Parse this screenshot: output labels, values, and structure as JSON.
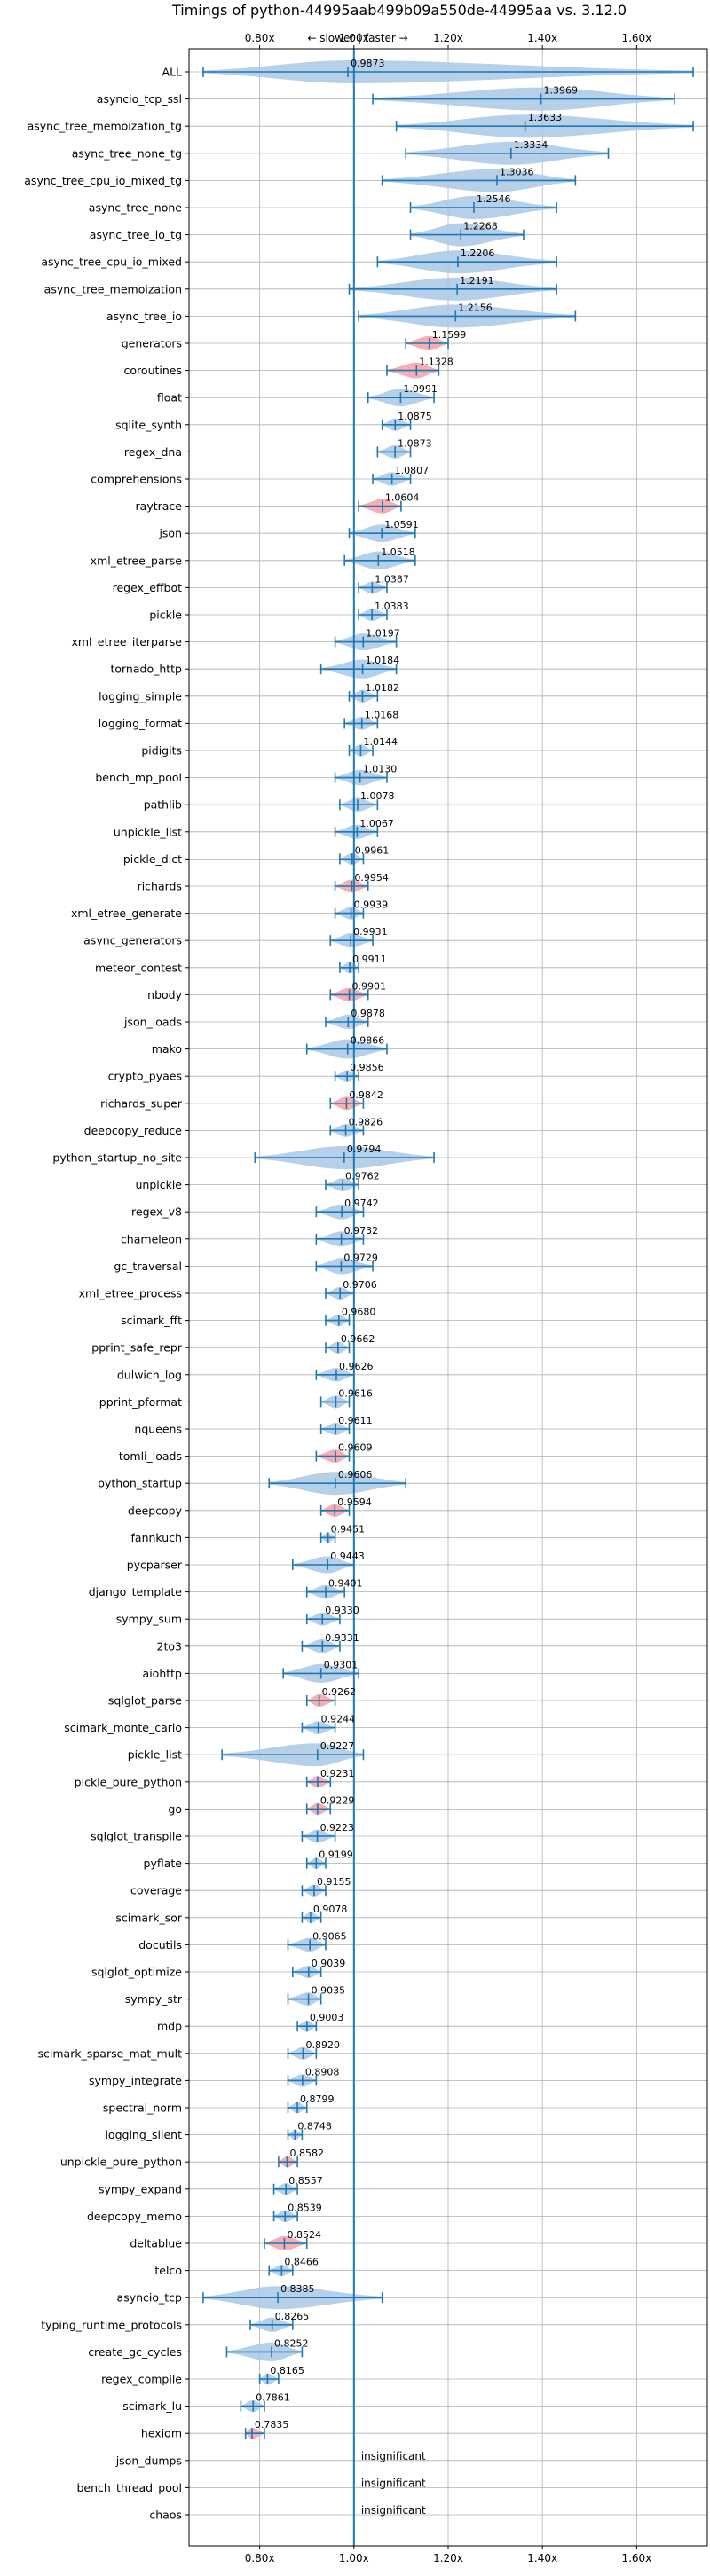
{
  "chart_data": {
    "type": "violin",
    "title": "Timings of python-44995aab499b09a550de-44995aa vs. 3.12.0",
    "top_axis_annotation": "← slower | faster →",
    "xlim": [
      0.65,
      1.75
    ],
    "xticks": [
      0.8,
      1.0,
      1.2,
      1.4,
      1.6
    ],
    "xtick_labels": [
      "0.80x",
      "1.00x",
      "1.20x",
      "1.40x",
      "1.60x"
    ],
    "reference_line": 1.0,
    "grid": true,
    "insignificant_label": "insignificant",
    "colors": {
      "normal": "#a9c8e6",
      "highlight": "#f3a0a6",
      "line": "#1f77b4"
    },
    "benchmarks": [
      {
        "name": "ALL",
        "value": 0.9873,
        "label": "0.9873",
        "lo": 0.68,
        "hi": 1.72,
        "hl": false
      },
      {
        "name": "asyncio_tcp_ssl",
        "value": 1.3969,
        "label": "1.3969",
        "lo": 1.04,
        "hi": 1.68,
        "hl": false
      },
      {
        "name": "async_tree_memoization_tg",
        "value": 1.3633,
        "label": "1.3633",
        "lo": 1.09,
        "hi": 1.72,
        "hl": false
      },
      {
        "name": "async_tree_none_tg",
        "value": 1.3334,
        "label": "1.3334",
        "lo": 1.11,
        "hi": 1.54,
        "hl": false
      },
      {
        "name": "async_tree_cpu_io_mixed_tg",
        "value": 1.3036,
        "label": "1.3036",
        "lo": 1.06,
        "hi": 1.47,
        "hl": false
      },
      {
        "name": "async_tree_none",
        "value": 1.2546,
        "label": "1.2546",
        "lo": 1.12,
        "hi": 1.43,
        "hl": false
      },
      {
        "name": "async_tree_io_tg",
        "value": 1.2268,
        "label": "1.2268",
        "lo": 1.12,
        "hi": 1.36,
        "hl": false
      },
      {
        "name": "async_tree_cpu_io_mixed",
        "value": 1.2206,
        "label": "1.2206",
        "lo": 1.05,
        "hi": 1.43,
        "hl": false
      },
      {
        "name": "async_tree_memoization",
        "value": 1.2191,
        "label": "1.2191",
        "lo": 0.99,
        "hi": 1.43,
        "hl": false
      },
      {
        "name": "async_tree_io",
        "value": 1.2156,
        "label": "1.2156",
        "lo": 1.01,
        "hi": 1.47,
        "hl": false
      },
      {
        "name": "generators",
        "value": 1.1599,
        "label": "1.1599",
        "lo": 1.11,
        "hi": 1.2,
        "hl": true
      },
      {
        "name": "coroutines",
        "value": 1.1328,
        "label": "1.1328",
        "lo": 1.07,
        "hi": 1.18,
        "hl": true
      },
      {
        "name": "float",
        "value": 1.0991,
        "label": "1.0991",
        "lo": 1.03,
        "hi": 1.17,
        "hl": false
      },
      {
        "name": "sqlite_synth",
        "value": 1.0875,
        "label": "1.0875",
        "lo": 1.06,
        "hi": 1.12,
        "hl": false
      },
      {
        "name": "regex_dna",
        "value": 1.0873,
        "label": "1.0873",
        "lo": 1.05,
        "hi": 1.12,
        "hl": false
      },
      {
        "name": "comprehensions",
        "value": 1.0807,
        "label": "1.0807",
        "lo": 1.04,
        "hi": 1.12,
        "hl": false
      },
      {
        "name": "raytrace",
        "value": 1.0604,
        "label": "1.0604",
        "lo": 1.01,
        "hi": 1.1,
        "hl": true
      },
      {
        "name": "json",
        "value": 1.0591,
        "label": "1.0591",
        "lo": 0.99,
        "hi": 1.13,
        "hl": false
      },
      {
        "name": "xml_etree_parse",
        "value": 1.0518,
        "label": "1.0518",
        "lo": 0.98,
        "hi": 1.13,
        "hl": false
      },
      {
        "name": "regex_effbot",
        "value": 1.0387,
        "label": "1.0387",
        "lo": 1.01,
        "hi": 1.07,
        "hl": false
      },
      {
        "name": "pickle",
        "value": 1.0383,
        "label": "1.0383",
        "lo": 1.01,
        "hi": 1.07,
        "hl": false
      },
      {
        "name": "xml_etree_iterparse",
        "value": 1.0197,
        "label": "1.0197",
        "lo": 0.96,
        "hi": 1.09,
        "hl": false
      },
      {
        "name": "tornado_http",
        "value": 1.0184,
        "label": "1.0184",
        "lo": 0.93,
        "hi": 1.09,
        "hl": false
      },
      {
        "name": "logging_simple",
        "value": 1.0182,
        "label": "1.0182",
        "lo": 0.99,
        "hi": 1.05,
        "hl": false
      },
      {
        "name": "logging_format",
        "value": 1.0168,
        "label": "1.0168",
        "lo": 0.98,
        "hi": 1.05,
        "hl": false
      },
      {
        "name": "pidigits",
        "value": 1.0144,
        "label": "1.0144",
        "lo": 0.99,
        "hi": 1.04,
        "hl": false
      },
      {
        "name": "bench_mp_pool",
        "value": 1.013,
        "label": "1.0130",
        "lo": 0.96,
        "hi": 1.07,
        "hl": false
      },
      {
        "name": "pathlib",
        "value": 1.0078,
        "label": "1.0078",
        "lo": 0.97,
        "hi": 1.05,
        "hl": false
      },
      {
        "name": "unpickle_list",
        "value": 1.0067,
        "label": "1.0067",
        "lo": 0.96,
        "hi": 1.05,
        "hl": false
      },
      {
        "name": "pickle_dict",
        "value": 0.9961,
        "label": "0.9961",
        "lo": 0.97,
        "hi": 1.02,
        "hl": false
      },
      {
        "name": "richards",
        "value": 0.9954,
        "label": "0.9954",
        "lo": 0.96,
        "hi": 1.03,
        "hl": true
      },
      {
        "name": "xml_etree_generate",
        "value": 0.9939,
        "label": "0.9939",
        "lo": 0.96,
        "hi": 1.02,
        "hl": false
      },
      {
        "name": "async_generators",
        "value": 0.9931,
        "label": "0.9931",
        "lo": 0.95,
        "hi": 1.04,
        "hl": false
      },
      {
        "name": "meteor_contest",
        "value": 0.9911,
        "label": "0.9911",
        "lo": 0.97,
        "hi": 1.01,
        "hl": false
      },
      {
        "name": "nbody",
        "value": 0.9901,
        "label": "0.9901",
        "lo": 0.95,
        "hi": 1.03,
        "hl": true
      },
      {
        "name": "json_loads",
        "value": 0.9878,
        "label": "0.9878",
        "lo": 0.94,
        "hi": 1.03,
        "hl": false
      },
      {
        "name": "mako",
        "value": 0.9866,
        "label": "0.9866",
        "lo": 0.9,
        "hi": 1.07,
        "hl": false
      },
      {
        "name": "crypto_pyaes",
        "value": 0.9856,
        "label": "0.9856",
        "lo": 0.96,
        "hi": 1.01,
        "hl": false
      },
      {
        "name": "richards_super",
        "value": 0.9842,
        "label": "0.9842",
        "lo": 0.95,
        "hi": 1.02,
        "hl": true
      },
      {
        "name": "deepcopy_reduce",
        "value": 0.9826,
        "label": "0.9826",
        "lo": 0.95,
        "hi": 1.02,
        "hl": false
      },
      {
        "name": "python_startup_no_site",
        "value": 0.9794,
        "label": "0.9794",
        "lo": 0.79,
        "hi": 1.17,
        "hl": false
      },
      {
        "name": "unpickle",
        "value": 0.9762,
        "label": "0.9762",
        "lo": 0.94,
        "hi": 1.01,
        "hl": false
      },
      {
        "name": "regex_v8",
        "value": 0.9742,
        "label": "0.9742",
        "lo": 0.92,
        "hi": 1.02,
        "hl": false
      },
      {
        "name": "chameleon",
        "value": 0.9732,
        "label": "0.9732",
        "lo": 0.92,
        "hi": 1.02,
        "hl": false
      },
      {
        "name": "gc_traversal",
        "value": 0.9729,
        "label": "0.9729",
        "lo": 0.92,
        "hi": 1.04,
        "hl": false
      },
      {
        "name": "xml_etree_process",
        "value": 0.9706,
        "label": "0.9706",
        "lo": 0.94,
        "hi": 1.0,
        "hl": false
      },
      {
        "name": "scimark_fft",
        "value": 0.968,
        "label": "0.9680",
        "lo": 0.94,
        "hi": 0.99,
        "hl": false
      },
      {
        "name": "pprint_safe_repr",
        "value": 0.9662,
        "label": "0.9662",
        "lo": 0.94,
        "hi": 0.99,
        "hl": false
      },
      {
        "name": "dulwich_log",
        "value": 0.9626,
        "label": "0.9626",
        "lo": 0.92,
        "hi": 1.0,
        "hl": false
      },
      {
        "name": "pprint_pformat",
        "value": 0.9616,
        "label": "0.9616",
        "lo": 0.93,
        "hi": 0.99,
        "hl": false
      },
      {
        "name": "nqueens",
        "value": 0.9611,
        "label": "0.9611",
        "lo": 0.93,
        "hi": 0.99,
        "hl": false
      },
      {
        "name": "tomli_loads",
        "value": 0.9609,
        "label": "0.9609",
        "lo": 0.92,
        "hi": 0.99,
        "hl": true
      },
      {
        "name": "python_startup",
        "value": 0.9606,
        "label": "0.9606",
        "lo": 0.82,
        "hi": 1.11,
        "hl": false
      },
      {
        "name": "deepcopy",
        "value": 0.9594,
        "label": "0.9594",
        "lo": 0.93,
        "hi": 0.99,
        "hl": true
      },
      {
        "name": "fannkuch",
        "value": 0.9451,
        "label": "0.9451",
        "lo": 0.93,
        "hi": 0.96,
        "hl": false
      },
      {
        "name": "pycparser",
        "value": 0.9443,
        "label": "0.9443",
        "lo": 0.87,
        "hi": 1.0,
        "hl": false
      },
      {
        "name": "django_template",
        "value": 0.9401,
        "label": "0.9401",
        "lo": 0.9,
        "hi": 0.98,
        "hl": false
      },
      {
        "name": "sympy_sum",
        "value": 0.933,
        "label": "0.9330",
        "lo": 0.9,
        "hi": 0.97,
        "hl": false
      },
      {
        "name": "2to3",
        "value": 0.9331,
        "label": "0.9331",
        "lo": 0.89,
        "hi": 0.97,
        "hl": false
      },
      {
        "name": "aiohttp",
        "value": 0.9301,
        "label": "0.9301",
        "lo": 0.85,
        "hi": 1.01,
        "hl": false
      },
      {
        "name": "sqlglot_parse",
        "value": 0.9262,
        "label": "0.9262",
        "lo": 0.9,
        "hi": 0.96,
        "hl": true
      },
      {
        "name": "scimark_monte_carlo",
        "value": 0.9244,
        "label": "0.9244",
        "lo": 0.89,
        "hi": 0.96,
        "hl": false
      },
      {
        "name": "pickle_list",
        "value": 0.9227,
        "label": "0.9227",
        "lo": 0.72,
        "hi": 1.02,
        "hl": false
      },
      {
        "name": "pickle_pure_python",
        "value": 0.9231,
        "label": "0.9231",
        "lo": 0.9,
        "hi": 0.95,
        "hl": true
      },
      {
        "name": "go",
        "value": 0.9229,
        "label": "0.9229",
        "lo": 0.9,
        "hi": 0.95,
        "hl": true
      },
      {
        "name": "sqlglot_transpile",
        "value": 0.9223,
        "label": "0.9223",
        "lo": 0.89,
        "hi": 0.96,
        "hl": false
      },
      {
        "name": "pyflate",
        "value": 0.9199,
        "label": "0.9199",
        "lo": 0.9,
        "hi": 0.94,
        "hl": false
      },
      {
        "name": "coverage",
        "value": 0.9155,
        "label": "0.9155",
        "lo": 0.89,
        "hi": 0.94,
        "hl": false
      },
      {
        "name": "scimark_sor",
        "value": 0.9078,
        "label": "0.9078",
        "lo": 0.89,
        "hi": 0.93,
        "hl": false
      },
      {
        "name": "docutils",
        "value": 0.9065,
        "label": "0.9065",
        "lo": 0.86,
        "hi": 0.94,
        "hl": false
      },
      {
        "name": "sqlglot_optimize",
        "value": 0.9039,
        "label": "0.9039",
        "lo": 0.87,
        "hi": 0.93,
        "hl": false
      },
      {
        "name": "sympy_str",
        "value": 0.9035,
        "label": "0.9035",
        "lo": 0.86,
        "hi": 0.93,
        "hl": false
      },
      {
        "name": "mdp",
        "value": 0.9003,
        "label": "0.9003",
        "lo": 0.88,
        "hi": 0.92,
        "hl": false
      },
      {
        "name": "scimark_sparse_mat_mult",
        "value": 0.892,
        "label": "0.8920",
        "lo": 0.86,
        "hi": 0.92,
        "hl": false
      },
      {
        "name": "sympy_integrate",
        "value": 0.8908,
        "label": "0.8908",
        "lo": 0.86,
        "hi": 0.92,
        "hl": false
      },
      {
        "name": "spectral_norm",
        "value": 0.8799,
        "label": "0.8799",
        "lo": 0.86,
        "hi": 0.9,
        "hl": false
      },
      {
        "name": "logging_silent",
        "value": 0.8748,
        "label": "0.8748",
        "lo": 0.86,
        "hi": 0.89,
        "hl": false
      },
      {
        "name": "unpickle_pure_python",
        "value": 0.8582,
        "label": "0.8582",
        "lo": 0.84,
        "hi": 0.88,
        "hl": true
      },
      {
        "name": "sympy_expand",
        "value": 0.8557,
        "label": "0.8557",
        "lo": 0.83,
        "hi": 0.88,
        "hl": false
      },
      {
        "name": "deepcopy_memo",
        "value": 0.8539,
        "label": "0.8539",
        "lo": 0.83,
        "hi": 0.88,
        "hl": false
      },
      {
        "name": "deltablue",
        "value": 0.8524,
        "label": "0.8524",
        "lo": 0.81,
        "hi": 0.9,
        "hl": true
      },
      {
        "name": "telco",
        "value": 0.8466,
        "label": "0.8466",
        "lo": 0.82,
        "hi": 0.87,
        "hl": false
      },
      {
        "name": "asyncio_tcp",
        "value": 0.8385,
        "label": "0.8385",
        "lo": 0.68,
        "hi": 1.06,
        "hl": false
      },
      {
        "name": "typing_runtime_protocols",
        "value": 0.8265,
        "label": "0.8265",
        "lo": 0.78,
        "hi": 0.87,
        "hl": false
      },
      {
        "name": "create_gc_cycles",
        "value": 0.8252,
        "label": "0.8252",
        "lo": 0.73,
        "hi": 0.89,
        "hl": false
      },
      {
        "name": "regex_compile",
        "value": 0.8165,
        "label": "0.8165",
        "lo": 0.8,
        "hi": 0.84,
        "hl": false
      },
      {
        "name": "scimark_lu",
        "value": 0.7861,
        "label": "0.7861",
        "lo": 0.76,
        "hi": 0.81,
        "hl": false
      },
      {
        "name": "hexiom",
        "value": 0.7835,
        "label": "0.7835",
        "lo": 0.77,
        "hi": 0.81,
        "hl": true
      },
      {
        "name": "json_dumps",
        "value": null,
        "label": "",
        "lo": null,
        "hi": null,
        "hl": false,
        "insignificant": true
      },
      {
        "name": "bench_thread_pool",
        "value": null,
        "label": "",
        "lo": null,
        "hi": null,
        "hl": false,
        "insignificant": true
      },
      {
        "name": "chaos",
        "value": null,
        "label": "",
        "lo": null,
        "hi": null,
        "hl": false,
        "insignificant": true
      }
    ]
  }
}
